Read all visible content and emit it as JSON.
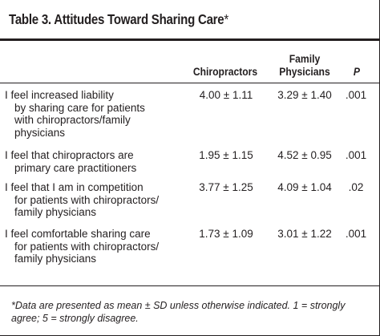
{
  "table": {
    "title": "Table 3. Attitudes Toward Sharing Care",
    "title_asterisk": "*",
    "headers": {
      "label": "",
      "chiropractors": "Chiropractors",
      "family_line1": "Family",
      "family_line2": "Physicians",
      "p": "P"
    },
    "rows": [
      {
        "label_lines": [
          "I feel increased liability",
          "by sharing care for patients",
          "with chiropractors/family",
          "physicians"
        ],
        "chiropractors": "4.00 ± 1.11",
        "family": "3.29 ± 1.40",
        "p": ".001"
      },
      {
        "label_lines": [
          "I feel that chiropractors are",
          "primary care practitioners"
        ],
        "chiropractors": "1.95 ± 1.15",
        "family": "4.52 ± 0.95",
        "p": ".001"
      },
      {
        "label_lines": [
          "I feel that I am in competition",
          "for patients with chiropractors/",
          "family physicians"
        ],
        "chiropractors": "3.77 ± 1.25",
        "family": "4.09 ± 1.04",
        "p": ".02"
      },
      {
        "label_lines": [
          "I feel comfortable sharing care",
          "for patients with chiropractors/",
          "family physicians"
        ],
        "chiropractors": "1.73 ± 1.09",
        "family": "3.01 ± 1.22",
        "p": ".001"
      }
    ],
    "footnote_line1": "*Data are presented as mean ± SD unless otherwise indicated. 1 = strongly",
    "footnote_line2": "agree; 5 = strongly disagree."
  }
}
